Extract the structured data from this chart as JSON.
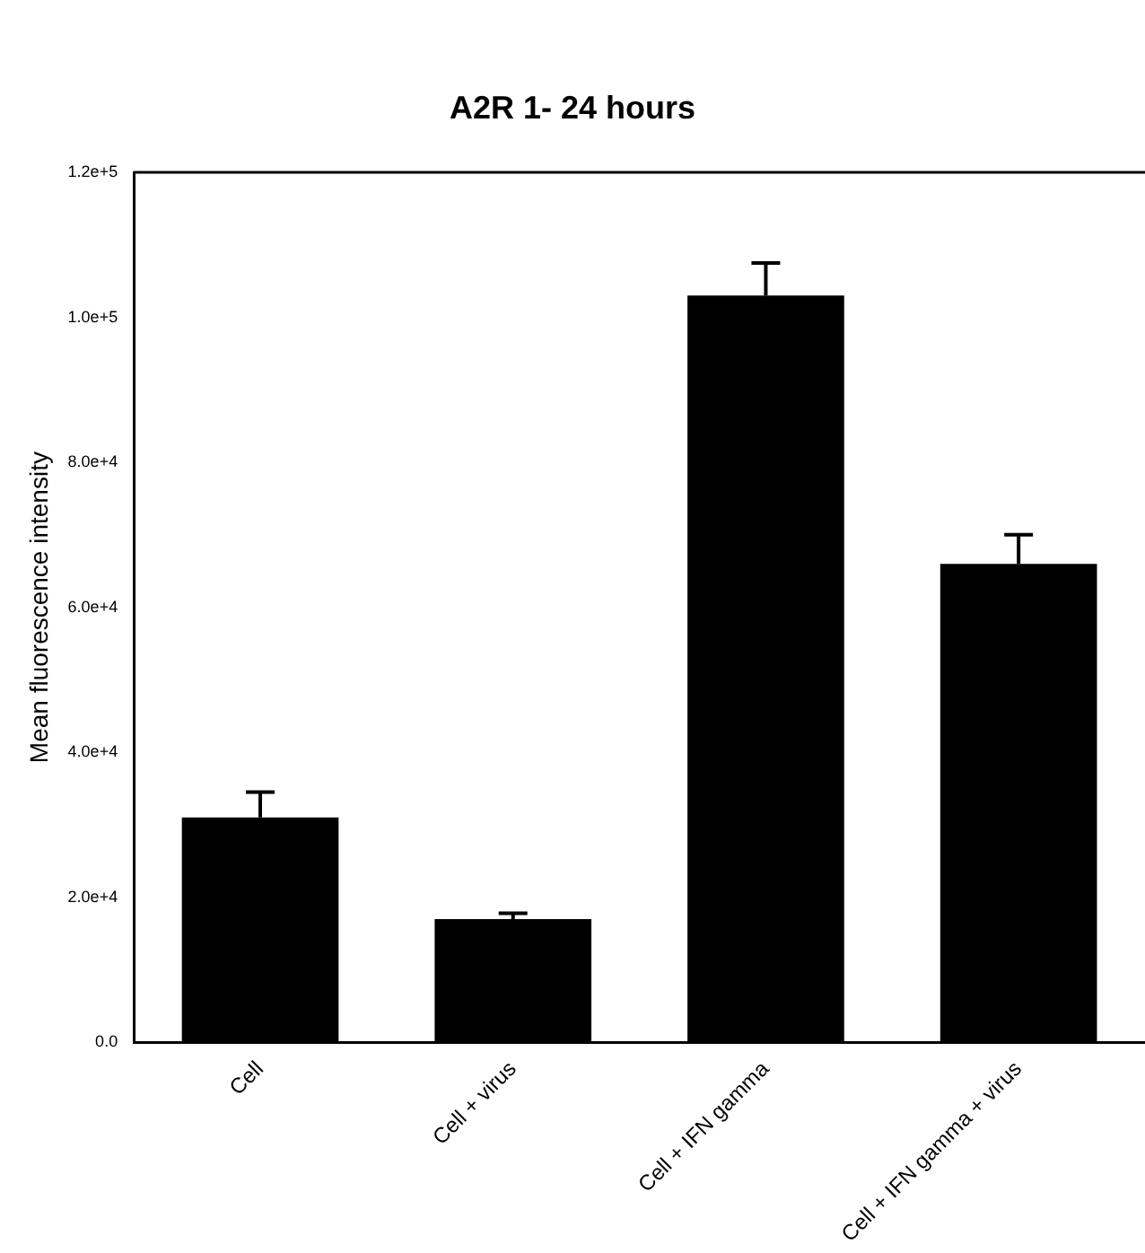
{
  "chart_data": {
    "type": "bar",
    "title": "A2R 1- 24 hours",
    "ylabel": "Mean fluorescence intensity",
    "categories": [
      "Cell",
      "Cell + virus",
      "Cell + IFN gamma",
      "Cell + IFN gamma + virus"
    ],
    "values": [
      31000,
      17000,
      103000,
      66000
    ],
    "errors": [
      3500,
      800,
      4500,
      4000
    ],
    "color": "#000000",
    "ylim": [
      0,
      120000
    ],
    "yticks": [
      {
        "value": 0,
        "label": "0.0"
      },
      {
        "value": 20000,
        "label": "2.0e+4"
      },
      {
        "value": 40000,
        "label": "4.0e+4"
      },
      {
        "value": 60000,
        "label": "6.0e+4"
      },
      {
        "value": 80000,
        "label": "8.0e+4"
      },
      {
        "value": 100000,
        "label": "1.0e+5"
      },
      {
        "value": 120000,
        "label": "1.2e+5"
      }
    ],
    "grid": false,
    "legend": false
  }
}
